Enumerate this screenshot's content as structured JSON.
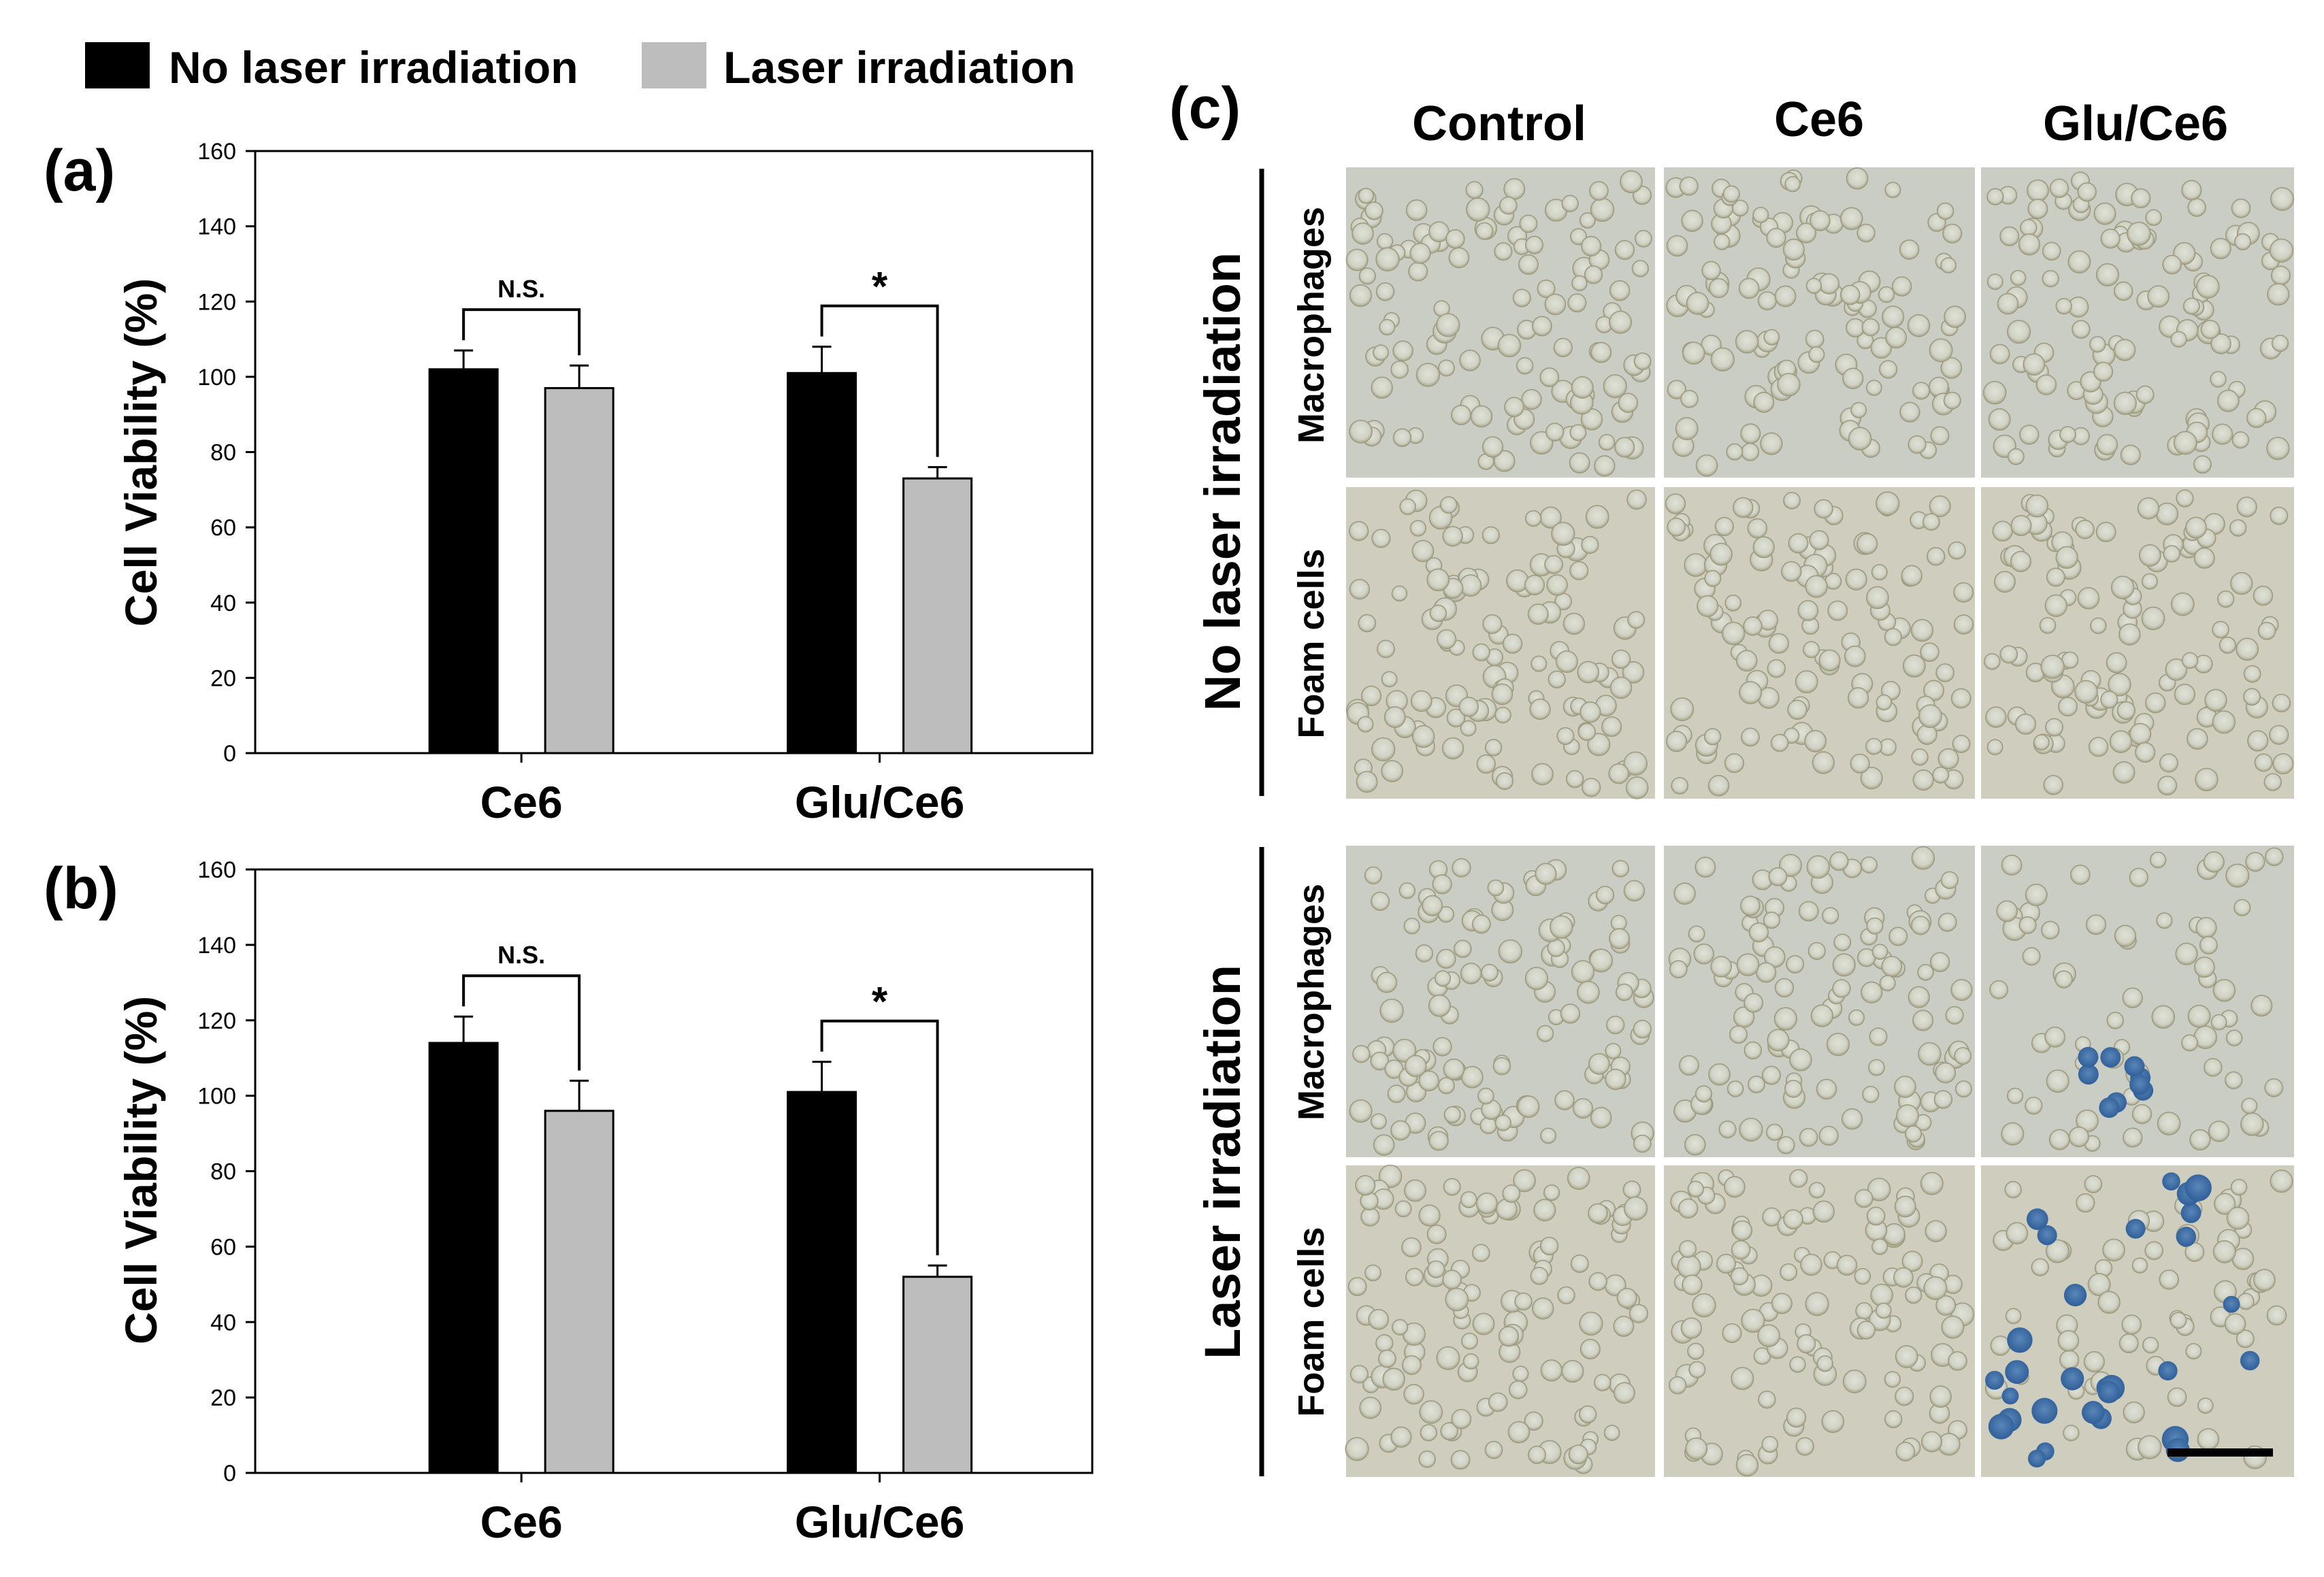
{
  "legend": {
    "items": [
      {
        "label": "No laser irradiation",
        "color": "#000000"
      },
      {
        "label": "Laser irradiation",
        "color": "#bdbdbd"
      }
    ]
  },
  "panels": {
    "a": {
      "label": "(a)"
    },
    "b": {
      "label": "(b)"
    },
    "c": {
      "label": "(c)"
    }
  },
  "chart_data": [
    {
      "panel": "(a)",
      "type": "bar",
      "ylabel": "Cell Viability (%)",
      "ylim": [
        0,
        160
      ],
      "yticks": [
        0,
        20,
        40,
        60,
        80,
        100,
        120,
        140,
        160
      ],
      "categories": [
        "Ce6",
        "Glu/Ce6"
      ],
      "series": [
        {
          "name": "No laser irradiation",
          "values": [
            102,
            101
          ],
          "errors": [
            5,
            7
          ]
        },
        {
          "name": "Laser irradiation",
          "values": [
            97,
            73
          ],
          "errors": [
            6,
            3
          ]
        }
      ],
      "annotations": [
        "N.S.",
        "*"
      ]
    },
    {
      "panel": "(b)",
      "type": "bar",
      "ylabel": "Cell Viability (%)",
      "ylim": [
        0,
        160
      ],
      "yticks": [
        0,
        20,
        40,
        60,
        80,
        100,
        120,
        140,
        160
      ],
      "categories": [
        "Ce6",
        "Glu/Ce6"
      ],
      "series": [
        {
          "name": "No laser irradiation",
          "values": [
            114,
            101
          ],
          "errors": [
            7,
            8
          ]
        },
        {
          "name": "Laser irradiation",
          "values": [
            96,
            52
          ],
          "errors": [
            8,
            3
          ]
        }
      ],
      "annotations": [
        "N.S.",
        "*"
      ]
    }
  ],
  "micrograph_grid": {
    "columns": [
      "Control",
      "Ce6",
      "Glu/Ce6"
    ],
    "groups": [
      "No laser irradiation",
      "Laser irradiation"
    ],
    "rows": [
      "Macrophages",
      "Foam cells"
    ]
  }
}
